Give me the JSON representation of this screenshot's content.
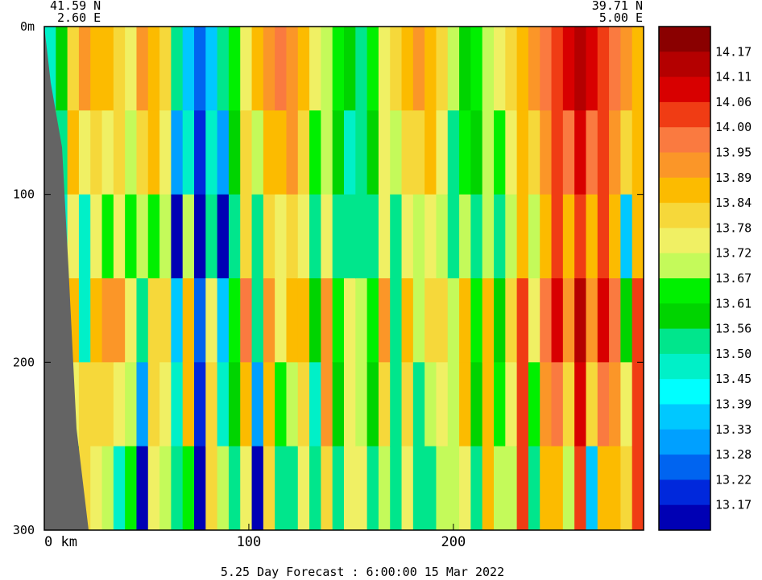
{
  "header": {
    "left_lat": "41.59 N",
    "left_lon": "2.60 E",
    "right_lat": "39.71 N",
    "right_lon": "5.00 E"
  },
  "footer": {
    "forecast_label": "5.25 Day Forecast :",
    "time": "6:00:00",
    "date": "15 Mar 2022"
  },
  "chart_data": {
    "type": "heatmap",
    "x": {
      "ticks": [
        0,
        100,
        200
      ],
      "tick_labels": [
        "0 km",
        "100",
        "200"
      ],
      "range": [
        0,
        293
      ]
    },
    "y": {
      "ticks": [
        0,
        100,
        200,
        300
      ],
      "tick_labels": [
        "0m",
        "100",
        "200",
        "300"
      ],
      "range": [
        0,
        300
      ],
      "inverted": true
    },
    "colorbar": {
      "labels": [
        "14.17",
        "14.11",
        "14.06",
        "14.00",
        "13.95",
        "13.89",
        "13.84",
        "13.78",
        "13.72",
        "13.67",
        "13.61",
        "13.56",
        "13.50",
        "13.45",
        "13.39",
        "13.33",
        "13.28",
        "13.22",
        "13.17"
      ],
      "colors": [
        "#8a0000",
        "#b40000",
        "#d80000",
        "#f03c14",
        "#fa7a40",
        "#fb9628",
        "#fcbb00",
        "#f6d83a",
        "#f0f064",
        "#c4fa5a",
        "#00f000",
        "#00d400",
        "#00e68c",
        "#00f0c8",
        "#00ffff",
        "#00c8ff",
        "#00a0ff",
        "#0064f0",
        "#0028dc",
        "#0000b4"
      ]
    },
    "land_color": "#646464"
  }
}
